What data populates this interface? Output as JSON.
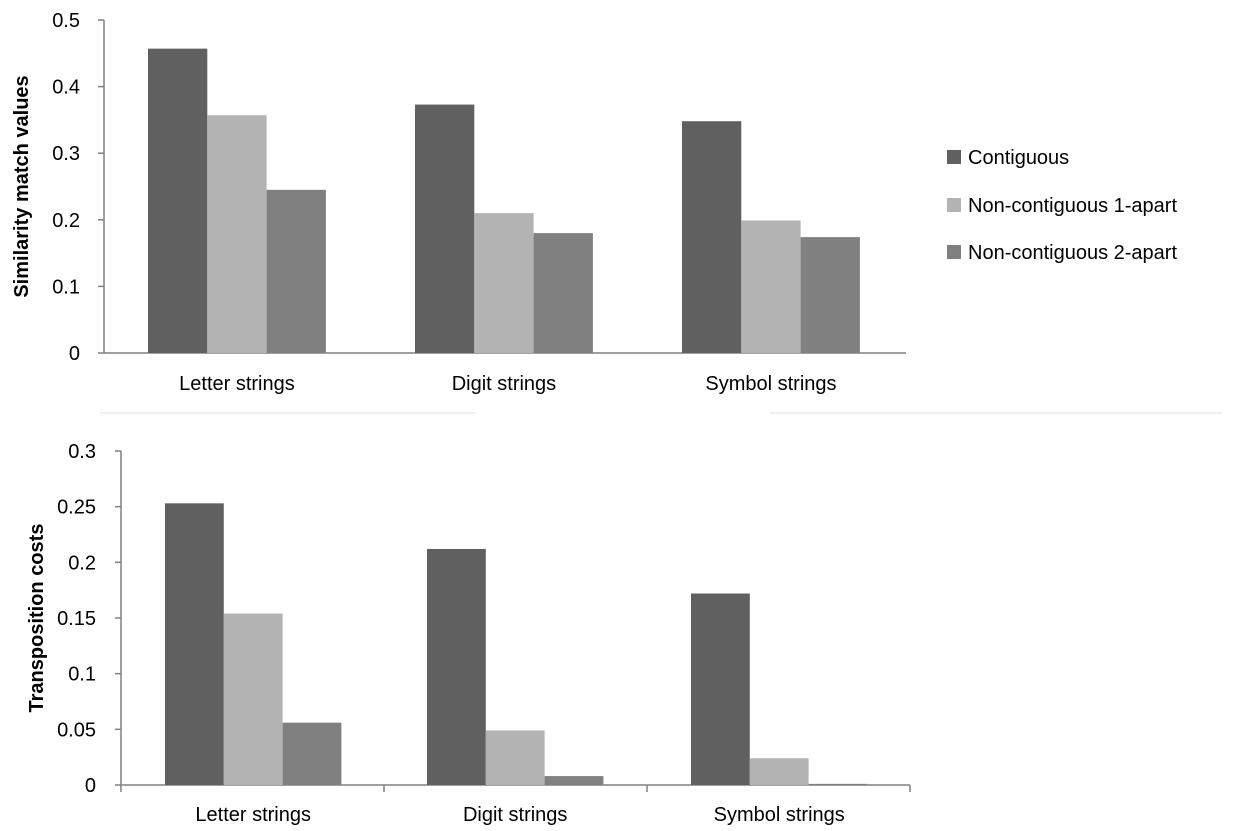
{
  "colors": {
    "contiguous": "#606060",
    "noncontig1": "#b3b3b3",
    "noncontig2": "#808080"
  },
  "chart_data": [
    {
      "type": "bar",
      "ylabel": "Similarity match values",
      "ylim": [
        0,
        0.5
      ],
      "yticks": [
        "0",
        "0.1",
        "0.2",
        "0.3",
        "0.4",
        "0.5"
      ],
      "categories": [
        "Letter strings",
        "Digit strings",
        "Symbol strings"
      ],
      "series": [
        {
          "name": "Contiguous",
          "values": [
            0.457,
            0.373,
            0.348
          ]
        },
        {
          "name": "Non-contiguous 1-apart",
          "values": [
            0.357,
            0.21,
            0.199
          ]
        },
        {
          "name": "Non-contiguous 2-apart",
          "values": [
            0.245,
            0.18,
            0.174
          ]
        }
      ],
      "legend": "right"
    },
    {
      "type": "bar",
      "ylabel": "Transposition costs",
      "ylim": [
        0,
        0.3
      ],
      "yticks": [
        "0",
        "0.05",
        "0.1",
        "0.15",
        "0.2",
        "0.25",
        "0.3"
      ],
      "categories": [
        "Letter strings",
        "Digit strings",
        "Symbol strings"
      ],
      "series": [
        {
          "values": [
            0.253,
            0.212,
            0.172
          ]
        },
        {
          "values": [
            0.154,
            0.049,
            0.024
          ]
        },
        {
          "values": [
            0.056,
            0.008,
            0.001
          ]
        }
      ]
    }
  ]
}
